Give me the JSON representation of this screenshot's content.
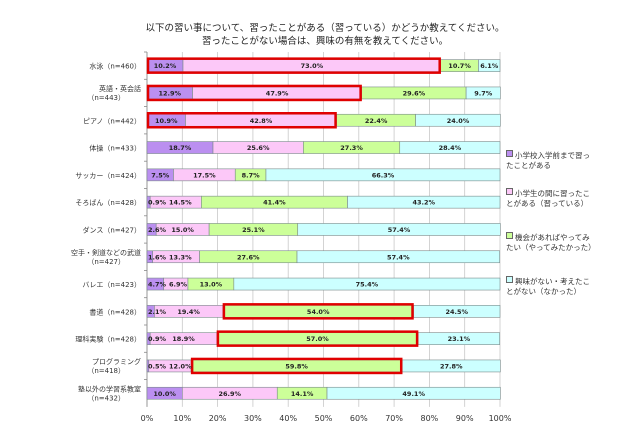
{
  "chart_data": {
    "type": "bar",
    "orientation": "horizontal",
    "stacked": true,
    "title_lines": [
      "以下の習い事について、習ったことがある（習っている）かどうか教えてください。",
      "習ったことがない場合は、興味の有無を教えてください。"
    ],
    "categories": [
      "水泳（n=460）",
      "英語・英会話（n=443）",
      "ピアノ（n=442）",
      "体操（n=433）",
      "サッカー（n=424）",
      "そろばん（n=428）",
      "ダンス（n=427）",
      "空手・剣道などの武道（n=427）",
      "バレエ（n=423）",
      "書道（n=428）",
      "理科実験（n=428）",
      "プログラミング（n=418）",
      "塾以外の学習系教室（n=432）"
    ],
    "series": [
      {
        "name": "小学校入学前まで習ったことがある",
        "color": "#bb8ff0",
        "values": [
          10.2,
          12.9,
          10.9,
          18.7,
          7.5,
          0.9,
          2.6,
          1.6,
          4.7,
          2.1,
          0.9,
          0.5,
          10.0
        ]
      },
      {
        "name": "小学生の間に習ったことがある（習っている）",
        "color": "#fcc8f8",
        "values": [
          73.0,
          47.9,
          42.8,
          25.6,
          17.5,
          14.5,
          15.0,
          13.3,
          6.9,
          19.4,
          18.9,
          12.0,
          26.9
        ]
      },
      {
        "name": "機会があればやってみたい（やってみたかった）",
        "color": "#ccff99",
        "values": [
          10.7,
          29.6,
          22.4,
          27.3,
          8.7,
          41.4,
          25.1,
          27.6,
          13.0,
          54.0,
          57.0,
          59.8,
          14.1
        ]
      },
      {
        "name": "興味がない・考えたことがない（なかった）",
        "color": "#ccffff",
        "values": [
          6.1,
          9.7,
          24.0,
          28.4,
          66.3,
          43.2,
          57.4,
          57.4,
          75.4,
          24.5,
          23.1,
          27.8,
          49.1
        ]
      }
    ],
    "highlights": [
      {
        "category_index": 0,
        "series": [
          0,
          1
        ]
      },
      {
        "category_index": 1,
        "series": [
          0,
          1
        ]
      },
      {
        "category_index": 2,
        "series": [
          0,
          1
        ]
      },
      {
        "category_index": 9,
        "series": [
          2
        ]
      },
      {
        "category_index": 10,
        "series": [
          2
        ]
      },
      {
        "category_index": 11,
        "series": [
          2
        ]
      }
    ],
    "highlight_color": "#e00000",
    "xlim": [
      0,
      100
    ],
    "x_ticks": [
      "0%",
      "10%",
      "20%",
      "30%",
      "40%",
      "50%",
      "60%",
      "70%",
      "80%",
      "90%",
      "100%"
    ],
    "grid": true,
    "legend_position": "right"
  }
}
